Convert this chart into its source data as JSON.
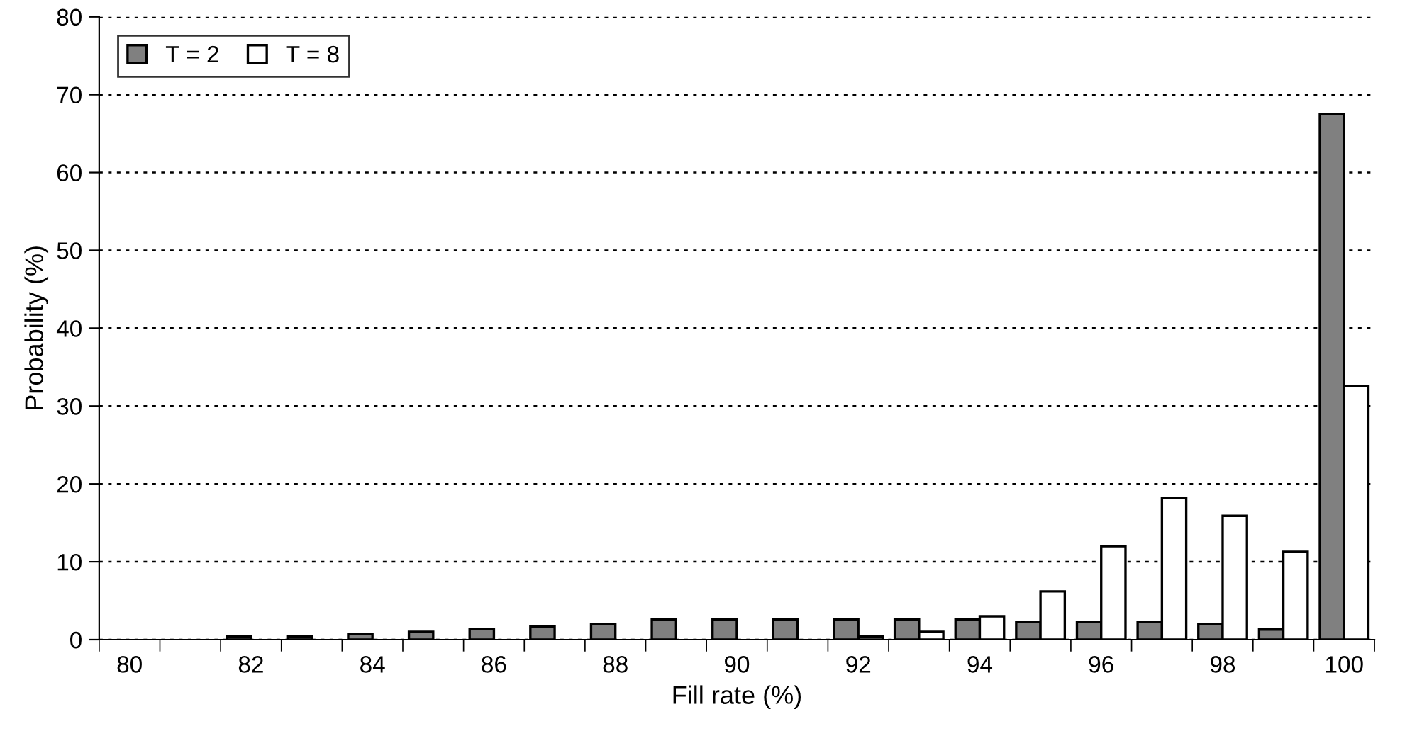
{
  "chart_data": {
    "type": "bar",
    "xlabel": "Fill rate (%)",
    "ylabel": "Probability (%)",
    "categories": [
      "80",
      null,
      "82",
      null,
      "84",
      null,
      "86",
      null,
      "88",
      null,
      "90",
      null,
      "92",
      null,
      "94",
      null,
      "96",
      null,
      "98",
      null,
      "100"
    ],
    "series": [
      {
        "name": "T = 2",
        "color": "#808080",
        "values": [
          0,
          0,
          0.4,
          0.4,
          0.7,
          1.0,
          1.4,
          1.7,
          2.0,
          2.6,
          2.6,
          2.6,
          2.6,
          2.6,
          2.6,
          2.3,
          2.3,
          2.3,
          2.0,
          1.3,
          67.5
        ]
      },
      {
        "name": "T = 8",
        "color": "#ffffff",
        "values": [
          0,
          0,
          0,
          0,
          0,
          0,
          0,
          0,
          0,
          0,
          0,
          0,
          0.4,
          1.0,
          3.0,
          6.2,
          12.0,
          18.2,
          15.9,
          11.3,
          32.6
        ]
      }
    ],
    "ylim": [
      0,
      80
    ],
    "yticks": [
      0,
      10,
      20,
      30,
      40,
      50,
      60,
      70,
      80
    ],
    "grid": "y",
    "legend": "top left"
  }
}
